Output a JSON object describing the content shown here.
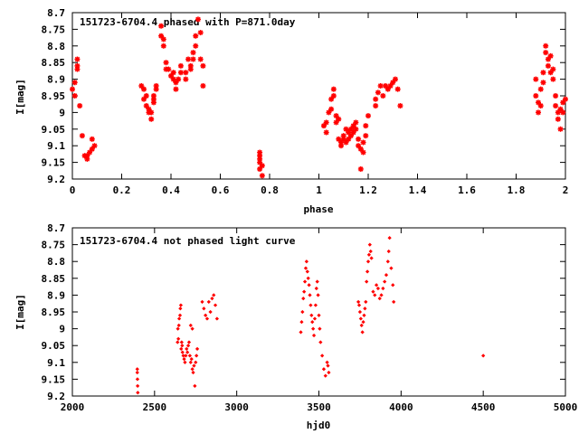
{
  "chart_data": [
    {
      "type": "scatter",
      "title": "151723-6704.4 phased with P=871.0day",
      "xlabel": "phase",
      "ylabel": "I[mag]",
      "xlim": [
        0,
        2
      ],
      "ylim": [
        9.2,
        8.7
      ],
      "y_inverted": true,
      "xticks": [
        "0",
        "0.2",
        "0.4",
        "0.6",
        "0.8",
        "1",
        "1.2",
        "1.4",
        "1.6",
        "1.8",
        "2"
      ],
      "yticks": [
        "8.7",
        "8.75",
        "8.8",
        "8.85",
        "8.9",
        "8.95",
        "9",
        "9.05",
        "9.1",
        "9.15",
        "9.2"
      ],
      "marker": "star",
      "color": "#ff0000",
      "points": [
        [
          0.0,
          8.93
        ],
        [
          0.01,
          8.95
        ],
        [
          0.01,
          8.91
        ],
        [
          0.02,
          8.87
        ],
        [
          0.02,
          8.84
        ],
        [
          0.02,
          8.86
        ],
        [
          0.03,
          8.98
        ],
        [
          0.04,
          9.07
        ],
        [
          0.05,
          9.13
        ],
        [
          0.06,
          9.14
        ],
        [
          0.06,
          9.13
        ],
        [
          0.07,
          9.12
        ],
        [
          0.08,
          9.08
        ],
        [
          0.08,
          9.11
        ],
        [
          0.09,
          9.1
        ],
        [
          0.28,
          8.92
        ],
        [
          0.29,
          8.93
        ],
        [
          0.29,
          8.96
        ],
        [
          0.3,
          8.95
        ],
        [
          0.3,
          8.98
        ],
        [
          0.31,
          9.0
        ],
        [
          0.31,
          8.99
        ],
        [
          0.32,
          9.02
        ],
        [
          0.32,
          9.0
        ],
        [
          0.33,
          8.97
        ],
        [
          0.33,
          8.96
        ],
        [
          0.33,
          8.95
        ],
        [
          0.34,
          8.93
        ],
        [
          0.34,
          8.92
        ],
        [
          0.36,
          8.77
        ],
        [
          0.36,
          8.74
        ],
        [
          0.37,
          8.78
        ],
        [
          0.37,
          8.8
        ],
        [
          0.38,
          8.85
        ],
        [
          0.38,
          8.87
        ],
        [
          0.39,
          8.87
        ],
        [
          0.4,
          8.89
        ],
        [
          0.41,
          8.88
        ],
        [
          0.41,
          8.9
        ],
        [
          0.42,
          8.91
        ],
        [
          0.42,
          8.93
        ],
        [
          0.43,
          8.9
        ],
        [
          0.44,
          8.86
        ],
        [
          0.44,
          8.88
        ],
        [
          0.46,
          8.9
        ],
        [
          0.46,
          8.88
        ],
        [
          0.47,
          8.84
        ],
        [
          0.48,
          8.87
        ],
        [
          0.48,
          8.86
        ],
        [
          0.49,
          8.82
        ],
        [
          0.49,
          8.84
        ],
        [
          0.5,
          8.8
        ],
        [
          0.5,
          8.77
        ],
        [
          0.51,
          8.72
        ],
        [
          0.52,
          8.76
        ],
        [
          0.52,
          8.84
        ],
        [
          0.53,
          8.86
        ],
        [
          0.53,
          8.92
        ],
        [
          0.76,
          9.12
        ],
        [
          0.76,
          9.13
        ],
        [
          0.76,
          9.14
        ],
        [
          0.76,
          9.15
        ],
        [
          0.76,
          9.17
        ],
        [
          0.77,
          9.16
        ],
        [
          0.77,
          9.19
        ],
        [
          1.02,
          9.04
        ],
        [
          1.03,
          9.03
        ],
        [
          1.03,
          9.06
        ],
        [
          1.04,
          9.0
        ],
        [
          1.05,
          8.99
        ],
        [
          1.05,
          8.96
        ],
        [
          1.06,
          8.95
        ],
        [
          1.06,
          8.93
        ],
        [
          1.07,
          9.01
        ],
        [
          1.07,
          9.03
        ],
        [
          1.08,
          9.02
        ],
        [
          1.08,
          9.08
        ],
        [
          1.09,
          9.09
        ],
        [
          1.09,
          9.1
        ],
        [
          1.1,
          9.08
        ],
        [
          1.1,
          9.07
        ],
        [
          1.11,
          9.09
        ],
        [
          1.11,
          9.05
        ],
        [
          1.12,
          9.06
        ],
        [
          1.12,
          9.08
        ],
        [
          1.13,
          9.07
        ],
        [
          1.13,
          9.05
        ],
        [
          1.14,
          9.04
        ],
        [
          1.14,
          9.06
        ],
        [
          1.15,
          9.03
        ],
        [
          1.15,
          9.05
        ],
        [
          1.16,
          9.1
        ],
        [
          1.16,
          9.08
        ],
        [
          1.17,
          9.11
        ],
        [
          1.17,
          9.17
        ],
        [
          1.18,
          9.12
        ],
        [
          1.18,
          9.09
        ],
        [
          1.19,
          9.07
        ],
        [
          1.19,
          9.04
        ],
        [
          1.2,
          9.01
        ],
        [
          1.23,
          8.98
        ],
        [
          1.23,
          8.96
        ],
        [
          1.24,
          8.94
        ],
        [
          1.25,
          8.92
        ],
        [
          1.26,
          8.95
        ],
        [
          1.27,
          8.92
        ],
        [
          1.28,
          8.93
        ],
        [
          1.29,
          8.92
        ],
        [
          1.3,
          8.91
        ],
        [
          1.31,
          8.9
        ],
        [
          1.32,
          8.93
        ],
        [
          1.33,
          8.98
        ],
        [
          1.88,
          8.9
        ],
        [
          1.88,
          8.95
        ],
        [
          1.89,
          8.97
        ],
        [
          1.89,
          9.0
        ],
        [
          1.9,
          8.98
        ],
        [
          1.9,
          8.93
        ],
        [
          1.91,
          8.91
        ],
        [
          1.91,
          8.88
        ],
        [
          1.92,
          8.8
        ],
        [
          1.92,
          8.82
        ],
        [
          1.93,
          8.84
        ],
        [
          1.93,
          8.86
        ],
        [
          1.94,
          8.83
        ],
        [
          1.94,
          8.88
        ],
        [
          1.95,
          8.9
        ],
        [
          1.95,
          8.87
        ],
        [
          1.96,
          8.95
        ],
        [
          1.96,
          8.98
        ],
        [
          1.97,
          9.0
        ],
        [
          1.97,
          9.02
        ],
        [
          1.98,
          9.05
        ],
        [
          1.98,
          8.99
        ],
        [
          1.99,
          8.97
        ],
        [
          1.99,
          9.0
        ],
        [
          2.0,
          8.96
        ]
      ]
    },
    {
      "type": "scatter",
      "title": "151723-6704.4 not phased light curve",
      "xlabel": "hjd0",
      "ylabel": "I[mag]",
      "xlim": [
        2000,
        5000
      ],
      "ylim": [
        9.2,
        8.7
      ],
      "y_inverted": true,
      "xticks": [
        "2000",
        "2500",
        "3000",
        "3500",
        "4000",
        "4500",
        "5000"
      ],
      "yticks": [
        "8.7",
        "8.75",
        "8.8",
        "8.85",
        "8.9",
        "8.95",
        "9",
        "9.05",
        "9.1",
        "9.15",
        "9.2"
      ],
      "marker": "dot",
      "color": "#ff0000",
      "points": [
        [
          2395,
          9.12
        ],
        [
          2395,
          9.13
        ],
        [
          2396,
          9.15
        ],
        [
          2397,
          9.17
        ],
        [
          2398,
          9.19
        ],
        [
          2640,
          9.04
        ],
        [
          2642,
          9.0
        ],
        [
          2645,
          9.03
        ],
        [
          2648,
          8.99
        ],
        [
          2650,
          8.97
        ],
        [
          2655,
          8.96
        ],
        [
          2657,
          8.94
        ],
        [
          2660,
          8.93
        ],
        [
          2662,
          9.06
        ],
        [
          2665,
          9.04
        ],
        [
          2668,
          9.05
        ],
        [
          2670,
          9.07
        ],
        [
          2675,
          9.08
        ],
        [
          2680,
          9.09
        ],
        [
          2685,
          9.1
        ],
        [
          2690,
          9.08
        ],
        [
          2695,
          9.06
        ],
        [
          2700,
          9.07
        ],
        [
          2705,
          9.05
        ],
        [
          2710,
          9.04
        ],
        [
          2715,
          9.08
        ],
        [
          2720,
          9.1
        ],
        [
          2725,
          9.09
        ],
        [
          2730,
          9.12
        ],
        [
          2735,
          9.13
        ],
        [
          2740,
          9.11
        ],
        [
          2745,
          9.17
        ],
        [
          2750,
          9.1
        ],
        [
          2755,
          9.08
        ],
        [
          2760,
          9.06
        ],
        [
          2720,
          8.99
        ],
        [
          2730,
          9.0
        ],
        [
          2790,
          8.92
        ],
        [
          2800,
          8.94
        ],
        [
          2810,
          8.96
        ],
        [
          2820,
          8.97
        ],
        [
          2830,
          8.92
        ],
        [
          2840,
          8.95
        ],
        [
          2850,
          8.91
        ],
        [
          2860,
          8.9
        ],
        [
          2870,
          8.93
        ],
        [
          2880,
          8.97
        ],
        [
          3390,
          9.01
        ],
        [
          3395,
          8.98
        ],
        [
          3400,
          8.95
        ],
        [
          3405,
          8.91
        ],
        [
          3410,
          8.89
        ],
        [
          3415,
          8.86
        ],
        [
          3420,
          8.82
        ],
        [
          3425,
          8.8
        ],
        [
          3430,
          8.83
        ],
        [
          3435,
          8.85
        ],
        [
          3440,
          8.87
        ],
        [
          3445,
          8.9
        ],
        [
          3450,
          8.93
        ],
        [
          3455,
          8.96
        ],
        [
          3460,
          8.98
        ],
        [
          3465,
          9.0
        ],
        [
          3470,
          9.02
        ],
        [
          3475,
          8.97
        ],
        [
          3480,
          8.93
        ],
        [
          3485,
          8.88
        ],
        [
          3490,
          8.86
        ],
        [
          3495,
          8.9
        ],
        [
          3500,
          8.96
        ],
        [
          3505,
          9.0
        ],
        [
          3510,
          9.04
        ],
        [
          3520,
          9.08
        ],
        [
          3530,
          9.12
        ],
        [
          3540,
          9.14
        ],
        [
          3550,
          9.1
        ],
        [
          3555,
          9.11
        ],
        [
          3560,
          9.13
        ],
        [
          3740,
          8.92
        ],
        [
          3745,
          8.93
        ],
        [
          3750,
          8.95
        ],
        [
          3755,
          8.97
        ],
        [
          3760,
          8.99
        ],
        [
          3765,
          9.01
        ],
        [
          3770,
          8.98
        ],
        [
          3775,
          8.96
        ],
        [
          3780,
          8.94
        ],
        [
          3785,
          8.92
        ],
        [
          3790,
          8.86
        ],
        [
          3795,
          8.83
        ],
        [
          3800,
          8.8
        ],
        [
          3805,
          8.78
        ],
        [
          3810,
          8.75
        ],
        [
          3815,
          8.77
        ],
        [
          3820,
          8.79
        ],
        [
          3830,
          8.89
        ],
        [
          3840,
          8.9
        ],
        [
          3850,
          8.87
        ],
        [
          3860,
          8.88
        ],
        [
          3870,
          8.91
        ],
        [
          3880,
          8.9
        ],
        [
          3890,
          8.88
        ],
        [
          3900,
          8.86
        ],
        [
          3910,
          8.84
        ],
        [
          3920,
          8.8
        ],
        [
          3925,
          8.77
        ],
        [
          3930,
          8.73
        ],
        [
          3940,
          8.82
        ],
        [
          3950,
          8.87
        ],
        [
          3955,
          8.92
        ],
        [
          4500,
          9.08
        ]
      ]
    }
  ]
}
